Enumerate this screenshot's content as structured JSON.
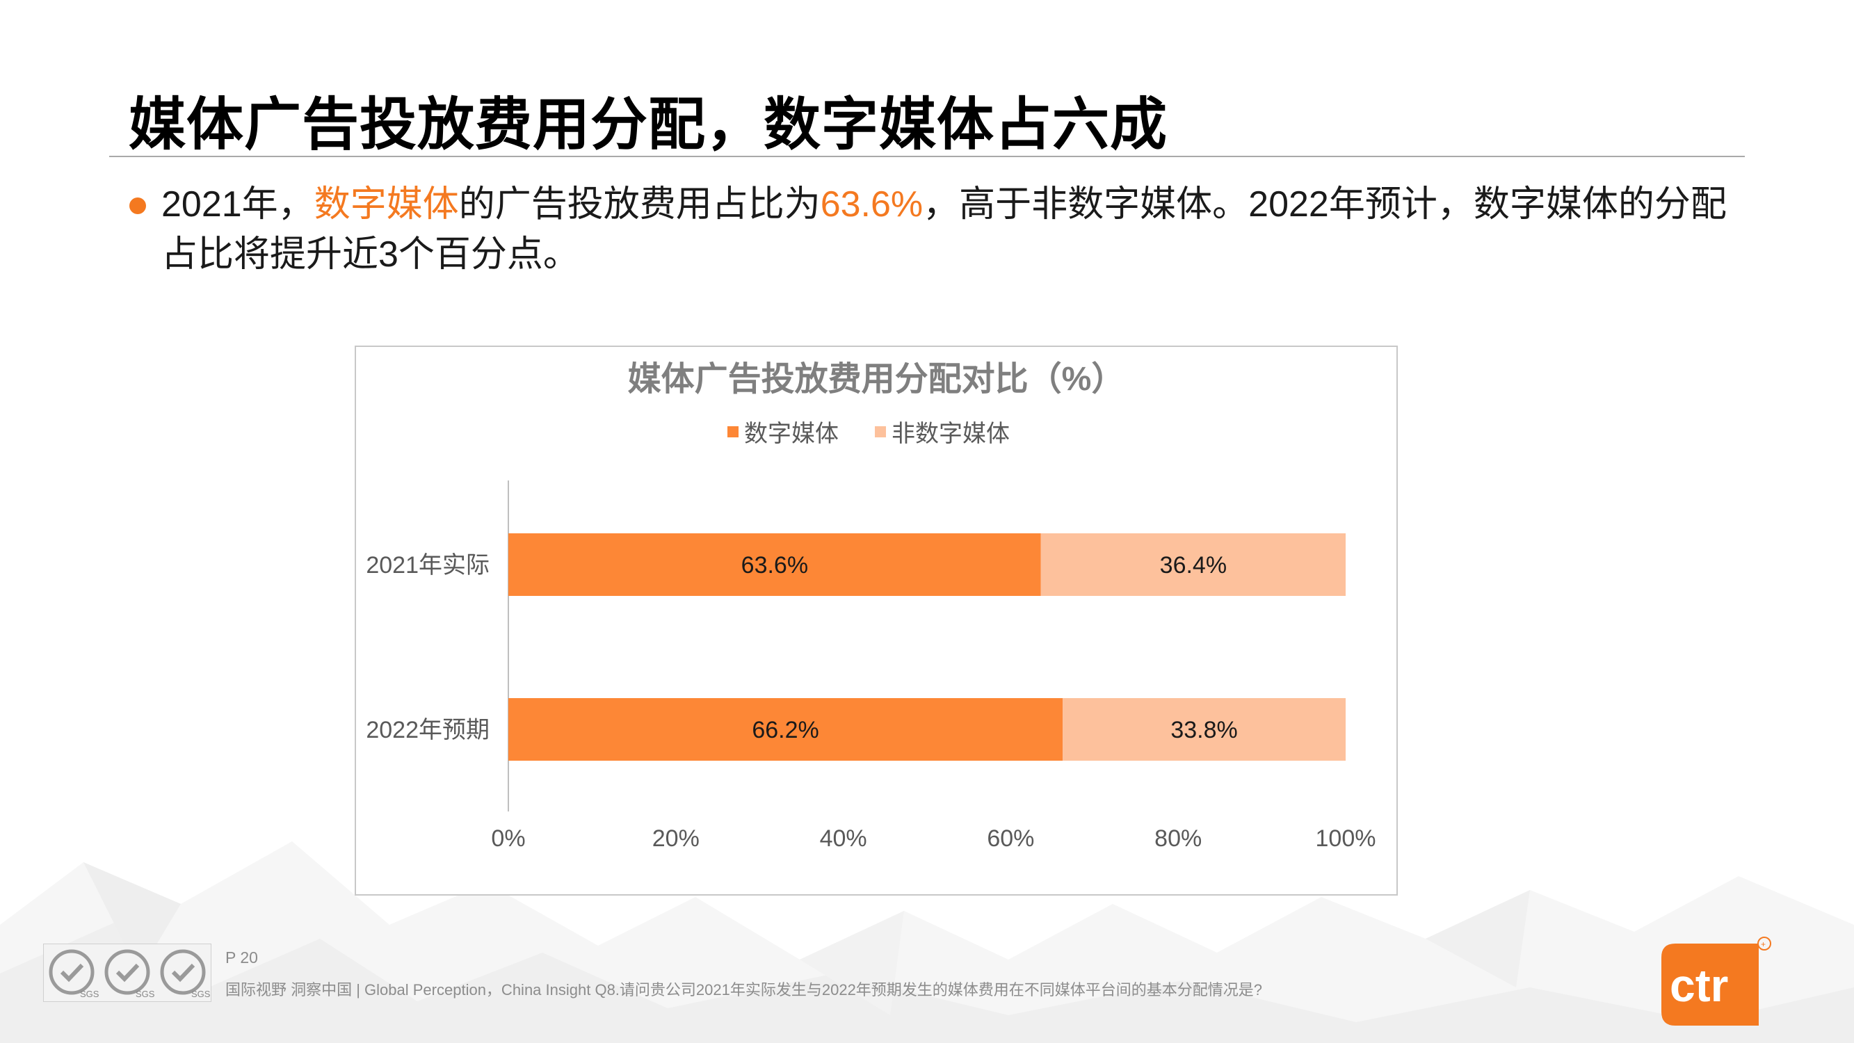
{
  "slide": {
    "title": "媒体广告投放费用分配，数字媒体占六成",
    "bullet": {
      "p1": "2021年，",
      "hl1": "数字媒体",
      "p2": "的广告投放费用占比为",
      "hl2": "63.6%",
      "p3": "，高于非数字媒体。2022年预计，数字媒体的分配占比将提升近3个百分点。"
    },
    "accent_color": "#f47920"
  },
  "chart_data": {
    "type": "bar",
    "orientation": "horizontal",
    "stacked": true,
    "title": "媒体广告投放费用分配对比（%）",
    "categories": [
      "2021年实际",
      "2022年预期"
    ],
    "series": [
      {
        "name": "数字媒体",
        "values": [
          63.6,
          66.2
        ],
        "labels": [
          "63.6%",
          "66.2%"
        ],
        "color": "#fd8736"
      },
      {
        "name": "非数字媒体",
        "values": [
          36.4,
          33.8
        ],
        "labels": [
          "36.4%",
          "33.8%"
        ],
        "color": "#fdc19c"
      }
    ],
    "xlim": [
      0,
      100
    ],
    "xticks": [
      0,
      20,
      40,
      60,
      80,
      100
    ],
    "xtick_labels": [
      "0%",
      "20%",
      "40%",
      "60%",
      "80%",
      "100%"
    ],
    "legend_position": "top",
    "grid": false
  },
  "footer": {
    "page": "P 20",
    "note": "国际视野 洞察中国 |  Global Perception，China Insight Q8.请问贵公司2021年实际发生与2022年预期发生的媒体费用在不同媒体平台间的基本分配情况是?",
    "logo_text": "ctr",
    "badge_text": "SGS"
  }
}
